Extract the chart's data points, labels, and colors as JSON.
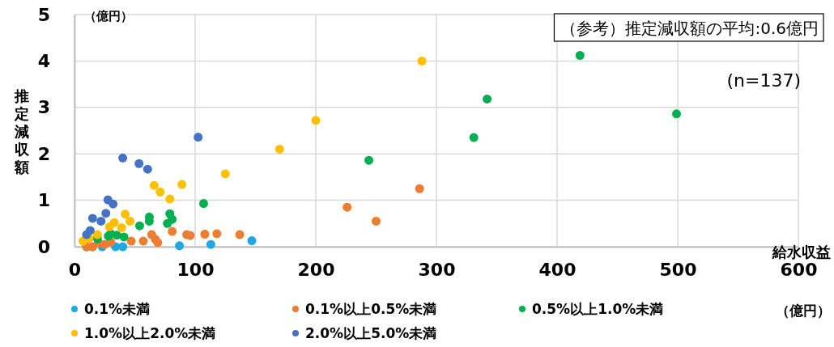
{
  "chart_data": {
    "type": "scatter",
    "xlabel": "給水収益",
    "ylabel": "推定減収額",
    "annotations": [
      "（参考）推定減収額の平均:0.6億円",
      "(n=137)",
      "（億円）",
      "（億円）"
    ],
    "xlim": [
      0,
      600
    ],
    "xticks": [
      0,
      100,
      200,
      300,
      400,
      500,
      600
    ],
    "ylim": [
      0,
      5
    ],
    "yticks": [
      0,
      1,
      2,
      3,
      4,
      5
    ],
    "grid": true,
    "legend": "bottom",
    "marker": "circle",
    "series": [
      {
        "name": "0.1%未満",
        "color": "#1ea7e0",
        "x": [
          147,
          113,
          87,
          34,
          40,
          23,
          10,
          15
        ],
        "values": [
          0.13,
          0.05,
          0.02,
          0,
          0,
          0,
          0,
          0
        ]
      },
      {
        "name": "0.1%以上0.5%未満",
        "color": "#ed7d31",
        "x": [
          286,
          226,
          250,
          137,
          118,
          108,
          93,
          96,
          81,
          64,
          67,
          69,
          57,
          47,
          10,
          15,
          25,
          30,
          20
        ],
        "values": [
          1.25,
          0.85,
          0.55,
          0.26,
          0.28,
          0.27,
          0.26,
          0.24,
          0.33,
          0.26,
          0.16,
          0.09,
          0.12,
          0.12,
          0,
          0,
          0.05,
          0.1,
          0.08
        ]
      },
      {
        "name": "0.5%以上1.0%未満",
        "color": "#00b050",
        "x": [
          419,
          499,
          342,
          331,
          244,
          107,
          79,
          81,
          77,
          62,
          62,
          54,
          41,
          28,
          19,
          30,
          35
        ],
        "values": [
          4.12,
          2.86,
          3.18,
          2.35,
          1.86,
          0.93,
          0.71,
          0.59,
          0.5,
          0.64,
          0.55,
          0.45,
          0.21,
          0.23,
          0.17,
          0.28,
          0.25
        ]
      },
      {
        "name": "1.0%以上2.0%未満",
        "color": "#ffc000",
        "x": [
          288,
          200,
          170,
          125,
          89,
          66,
          71,
          79,
          42,
          46,
          39,
          33,
          29,
          19,
          7,
          12
        ],
        "values": [
          4.0,
          2.72,
          2.1,
          1.57,
          1.34,
          1.32,
          1.18,
          1.03,
          0.7,
          0.55,
          0.41,
          0.52,
          0.43,
          0.26,
          0.12,
          0.18
        ]
      },
      {
        "name": "2.0%以上5.0%未満",
        "color": "#4472c4",
        "x": [
          102.5,
          40,
          53.5,
          60.6,
          27.7,
          32,
          26,
          22,
          15,
          10,
          13
        ],
        "values": [
          2.36,
          1.91,
          1.79,
          1.67,
          1.01,
          0.92,
          0.72,
          0.55,
          0.61,
          0.26,
          0.35
        ]
      }
    ]
  }
}
